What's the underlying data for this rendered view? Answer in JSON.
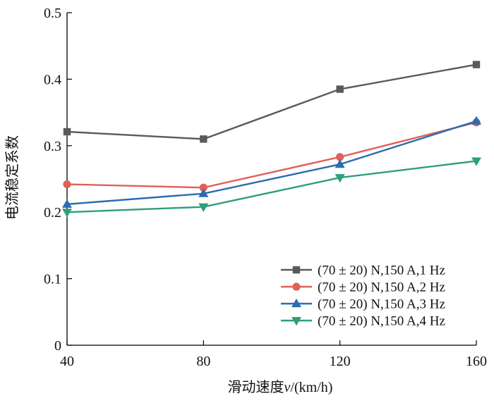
{
  "chart_data": {
    "type": "line",
    "title": "",
    "x": [
      40,
      80,
      120,
      160
    ],
    "xlim": [
      40,
      160
    ],
    "ylim": [
      0,
      0.5
    ],
    "x_ticks": [
      "40",
      "80",
      "120",
      "160"
    ],
    "y_ticks": [
      "0",
      "0.1",
      "0.2",
      "0.3",
      "0.4",
      "0.5"
    ],
    "xlabel_prefix": "滑动速度",
    "xlabel_var": "v",
    "xlabel_suffix": "/(km/h)",
    "ylabel": "电流稳定系数",
    "legend_position": "bottom-right",
    "series": [
      {
        "name": "(70 ± 20) N,150 A,1 Hz",
        "color": "#5a5a5a",
        "marker": "square",
        "values": [
          0.321,
          0.31,
          0.385,
          0.422
        ]
      },
      {
        "name": "(70 ± 20) N,150 A,2 Hz",
        "color": "#e0605a",
        "marker": "circle",
        "values": [
          0.242,
          0.237,
          0.283,
          0.335
        ]
      },
      {
        "name": "(70 ± 20) N,150 A,3 Hz",
        "color": "#2a6db0",
        "marker": "triangle-up",
        "values": [
          0.212,
          0.228,
          0.272,
          0.337
        ]
      },
      {
        "name": "(70 ± 20) N,150 A,4 Hz",
        "color": "#2e9e7c",
        "marker": "triangle-down",
        "values": [
          0.2,
          0.208,
          0.252,
          0.277
        ]
      }
    ]
  }
}
